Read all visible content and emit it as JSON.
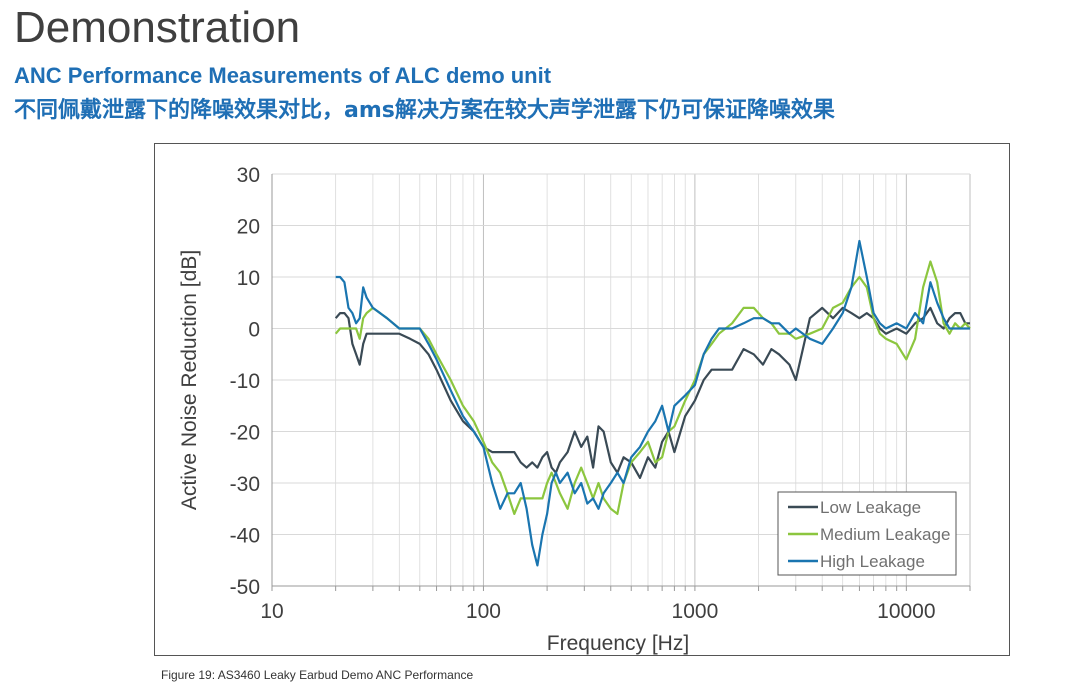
{
  "page": {
    "title": "Demonstration",
    "subtitle_en": "ANC Performance Measurements of ALC demo unit",
    "subtitle_cn": "不同佩戴泄露下的降噪效果对比，ams解决方案在较大声学泄露下仍可保证降噪效果",
    "caption": "Figure 19: AS3460 Leaky Earbud Demo ANC Performance"
  },
  "colors": {
    "low": "#3a4a55",
    "medium": "#8cc63f",
    "high": "#1a75b0",
    "grid": "#d9d9d9",
    "text": "#3f3f3f",
    "brand": "#1f6fb5"
  },
  "chart_data": {
    "type": "line",
    "xscale": "log",
    "title": "",
    "xlabel": "Frequency [Hz]",
    "ylabel": "Active Noise Reduction [dB]",
    "xlim": [
      10,
      20000
    ],
    "ylim": [
      -50,
      30
    ],
    "x_ticks": [
      10,
      100,
      1000,
      10000
    ],
    "x_tick_labels": [
      "10",
      "100",
      "1000",
      "10000"
    ],
    "y_ticks": [
      30,
      20,
      10,
      0,
      -10,
      -20,
      -30,
      -40,
      -50
    ],
    "y_tick_labels": [
      "30",
      "20",
      "10",
      "0",
      "-10",
      "-20",
      "-30",
      "-40",
      "-50"
    ],
    "legend": {
      "placement": "bottom-right",
      "entries": [
        "Low Leakage",
        "Medium Leakage",
        "High Leakage"
      ]
    },
    "series": [
      {
        "name": "Low Leakage",
        "x": [
          20,
          21,
          22,
          23,
          24,
          25,
          26,
          27,
          28,
          30,
          35,
          40,
          45,
          50,
          55,
          60,
          70,
          80,
          90,
          100,
          110,
          120,
          130,
          140,
          150,
          160,
          170,
          180,
          190,
          200,
          210,
          220,
          230,
          250,
          270,
          290,
          310,
          330,
          350,
          370,
          400,
          430,
          460,
          500,
          550,
          600,
          650,
          700,
          750,
          800,
          900,
          1000,
          1100,
          1200,
          1300,
          1500,
          1700,
          1900,
          2100,
          2300,
          2500,
          2800,
          3000,
          3500,
          4000,
          4500,
          5000,
          5500,
          6000,
          6500,
          7000,
          7500,
          8000,
          9000,
          10000,
          11000,
          12000,
          13000,
          14000,
          15000,
          16000,
          17000,
          18000,
          19000,
          20000
        ],
        "y": [
          2,
          3,
          3,
          2,
          -3,
          -5,
          -7,
          -3,
          -1,
          -1,
          -1,
          -1,
          -2,
          -3,
          -5,
          -8,
          -14,
          -18,
          -20,
          -23,
          -24,
          -24,
          -24,
          -24,
          -26,
          -27,
          -26,
          -27,
          -25,
          -24,
          -27,
          -28,
          -26,
          -24,
          -20,
          -23,
          -21,
          -27,
          -19,
          -20,
          -26,
          -28,
          -25,
          -26,
          -29,
          -25,
          -27,
          -22,
          -20,
          -24,
          -17,
          -14,
          -10,
          -8,
          -8,
          -8,
          -4,
          -5,
          -7,
          -4,
          -5,
          -7,
          -10,
          2,
          4,
          2,
          4,
          3,
          2,
          3,
          2,
          0,
          -1,
          0,
          -1,
          1,
          2,
          4,
          1,
          0,
          2,
          3,
          3,
          1,
          1
        ]
      },
      {
        "name": "Medium Leakage",
        "x": [
          20,
          21,
          22,
          23,
          24,
          25,
          26,
          27,
          28,
          30,
          35,
          40,
          45,
          50,
          55,
          60,
          70,
          80,
          90,
          100,
          110,
          120,
          130,
          140,
          150,
          160,
          170,
          180,
          190,
          200,
          210,
          220,
          230,
          250,
          270,
          290,
          310,
          330,
          350,
          370,
          400,
          430,
          460,
          500,
          550,
          600,
          650,
          700,
          750,
          800,
          900,
          1000,
          1100,
          1200,
          1300,
          1500,
          1700,
          1900,
          2100,
          2300,
          2500,
          2800,
          3000,
          3500,
          4000,
          4500,
          5000,
          5500,
          6000,
          6500,
          7000,
          7500,
          8000,
          9000,
          10000,
          11000,
          12000,
          13000,
          14000,
          15000,
          16000,
          17000,
          18000,
          19000,
          20000
        ],
        "y": [
          -1,
          0,
          0,
          0,
          0,
          0,
          -2,
          2,
          3,
          4,
          2,
          0,
          0,
          0,
          -2,
          -5,
          -10,
          -15,
          -18,
          -22,
          -26,
          -28,
          -32,
          -36,
          -33,
          -33,
          -33,
          -33,
          -33,
          -30,
          -28,
          -30,
          -32,
          -35,
          -30,
          -27,
          -30,
          -33,
          -30,
          -33,
          -35,
          -36,
          -30,
          -26,
          -24,
          -22,
          -26,
          -25,
          -20,
          -19,
          -14,
          -10,
          -5,
          -3,
          -1,
          1,
          4,
          4,
          2,
          1,
          -1,
          -1,
          -2,
          -1,
          0,
          4,
          5,
          8,
          10,
          8,
          2,
          -1,
          -2,
          -3,
          -6,
          -2,
          8,
          13,
          9,
          1,
          -1,
          1,
          0,
          1,
          0
        ]
      },
      {
        "name": "High Leakage",
        "x": [
          20,
          21,
          22,
          23,
          24,
          25,
          26,
          27,
          28,
          30,
          35,
          40,
          45,
          50,
          55,
          60,
          70,
          80,
          90,
          100,
          110,
          120,
          130,
          140,
          150,
          160,
          170,
          180,
          190,
          200,
          210,
          220,
          230,
          250,
          270,
          290,
          310,
          330,
          350,
          370,
          400,
          430,
          460,
          500,
          550,
          600,
          650,
          700,
          750,
          800,
          900,
          1000,
          1100,
          1200,
          1300,
          1500,
          1700,
          1900,
          2100,
          2300,
          2500,
          2800,
          3000,
          3500,
          4000,
          4500,
          5000,
          5500,
          6000,
          6500,
          7000,
          7500,
          8000,
          9000,
          10000,
          11000,
          12000,
          13000,
          14000,
          15000,
          16000,
          17000,
          18000,
          19000,
          20000
        ],
        "y": [
          10,
          10,
          9,
          4,
          3,
          1,
          2,
          8,
          6,
          4,
          2,
          0,
          0,
          0,
          -3,
          -6,
          -12,
          -17,
          -20,
          -23,
          -30,
          -35,
          -32,
          -32,
          -30,
          -35,
          -42,
          -46,
          -40,
          -36,
          -30,
          -28,
          -30,
          -28,
          -32,
          -30,
          -34,
          -33,
          -35,
          -32,
          -30,
          -28,
          -30,
          -25,
          -23,
          -20,
          -18,
          -15,
          -20,
          -15,
          -13,
          -11,
          -5,
          -2,
          0,
          0,
          1,
          2,
          2,
          1,
          1,
          -1,
          0,
          -2,
          -3,
          0,
          3,
          8,
          17,
          10,
          3,
          1,
          0,
          1,
          0,
          3,
          1,
          9,
          5,
          2,
          0,
          0,
          0,
          0,
          0
        ]
      }
    ]
  }
}
